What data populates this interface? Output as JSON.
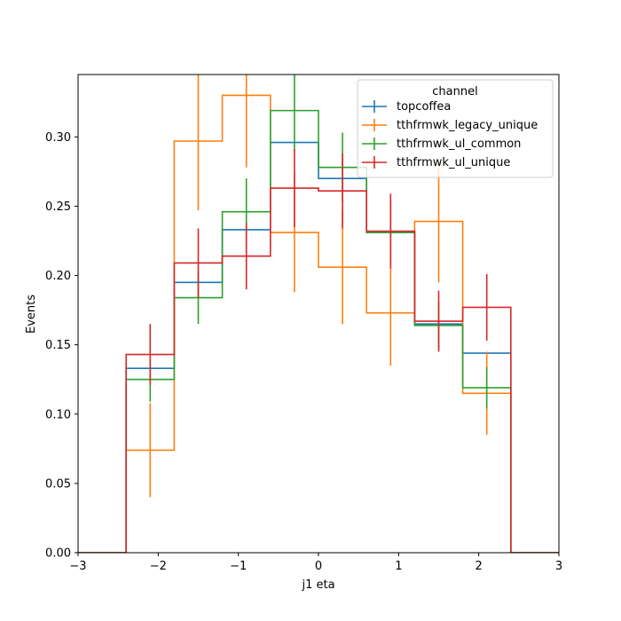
{
  "chart_data": {
    "type": "step-histogram",
    "xlabel": "j1 eta",
    "ylabel": "Events",
    "xlim": [
      -3,
      3
    ],
    "ylim": [
      0,
      0.345
    ],
    "xticks": [
      -3,
      -2,
      -1,
      0,
      1,
      2,
      3
    ],
    "xtick_labels": [
      "−3",
      "−2",
      "−1",
      "0",
      "1",
      "2",
      "3"
    ],
    "yticks": [
      0.0,
      0.05,
      0.1,
      0.15,
      0.2,
      0.25,
      0.3
    ],
    "ytick_labels": [
      "0.00",
      "0.05",
      "0.10",
      "0.15",
      "0.20",
      "0.25",
      "0.30"
    ],
    "bin_edges": [
      -3.0,
      -2.4,
      -1.8,
      -1.2,
      -0.6,
      0.0,
      0.6,
      1.2,
      1.8,
      2.4,
      3.0
    ],
    "legend": {
      "title": "channel",
      "position": "top-right"
    },
    "series": [
      {
        "name": "topcoffea",
        "color": "#1f77b4",
        "values": [
          0,
          0.133,
          0.195,
          0.233,
          0.296,
          0.27,
          0.231,
          0.165,
          0.144,
          0
        ],
        "errors": [
          0,
          0,
          0,
          0,
          0,
          0,
          0,
          0,
          0,
          0
        ]
      },
      {
        "name": "tthfrmwk_legacy_unique",
        "color": "#ff7f0e",
        "values": [
          0,
          0.074,
          0.297,
          0.33,
          0.231,
          0.206,
          0.173,
          0.239,
          0.115,
          0
        ],
        "errors": [
          0,
          0.034,
          0.05,
          0.052,
          0.043,
          0.041,
          0.038,
          0.044,
          0.03,
          0
        ]
      },
      {
        "name": "tthfrmwk_ul_common",
        "color": "#2ca02c",
        "values": [
          0,
          0.125,
          0.184,
          0.246,
          0.319,
          0.278,
          0.231,
          0.164,
          0.119,
          0
        ],
        "errors": [
          0,
          0.016,
          0.019,
          0.024,
          0.029,
          0.025,
          0.022,
          0.017,
          0.015,
          0
        ]
      },
      {
        "name": "tthfrmwk_ul_unique",
        "color": "#d62728",
        "values": [
          0,
          0.143,
          0.209,
          0.214,
          0.263,
          0.261,
          0.232,
          0.167,
          0.177,
          0
        ],
        "errors": [
          0,
          0.022,
          0.025,
          0.024,
          0.028,
          0.027,
          0.027,
          0.022,
          0.024,
          0
        ]
      }
    ]
  }
}
